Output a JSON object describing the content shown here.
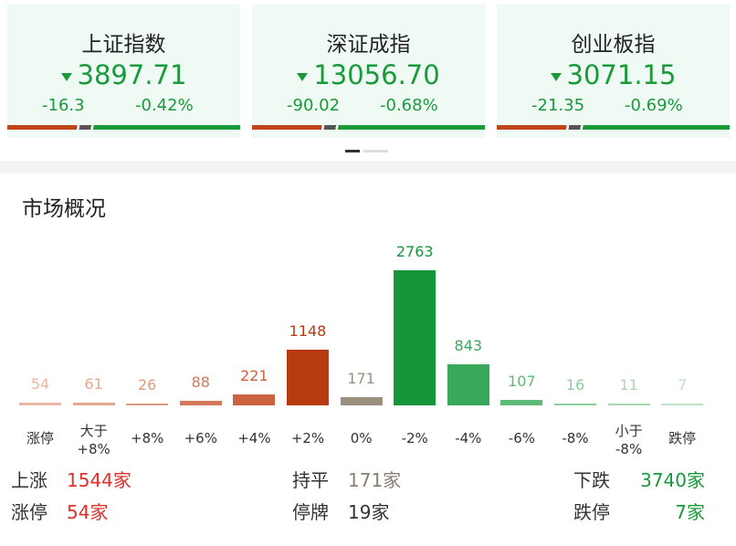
{
  "indices": [
    {
      "name": "上证指数",
      "value": "3897.71",
      "change": "-16.3",
      "pct": "-0.42%"
    },
    {
      "name": "深证成指",
      "value": "13056.70",
      "change": "-90.02",
      "pct": "-0.68%"
    },
    {
      "name": "创业板指",
      "value": "3071.15",
      "change": "-21.35",
      "pct": "-0.69%"
    }
  ],
  "section_title": "市场概况",
  "chart_data": {
    "type": "bar",
    "categories": [
      "涨停",
      "大于\n+8%",
      "+8%",
      "+6%",
      "+4%",
      "+2%",
      "0%",
      "-2%",
      "-4%",
      "-6%",
      "-8%",
      "小于\n-8%",
      "跌停"
    ],
    "values": [
      54,
      61,
      26,
      88,
      221,
      1148,
      171,
      2763,
      843,
      107,
      16,
      11,
      7
    ],
    "colors": [
      "#e9b7a4",
      "#e3a890",
      "#dd9a80",
      "#d4795a",
      "#cb6240",
      "#b83a10",
      "#9c8f80",
      "#15963a",
      "#3aa85b",
      "#5fb977",
      "#8fcd9e",
      "#a6d8b2",
      "#bfe3c7"
    ]
  },
  "summary": [
    {
      "label": "上涨",
      "value": "1544家"
    },
    {
      "label": "持平",
      "value": "171家"
    },
    {
      "label": "下跌",
      "value": "3740家"
    },
    {
      "label": "涨停",
      "value": "54家"
    },
    {
      "label": "停牌",
      "value": "19家"
    },
    {
      "label": "跌停",
      "value": "7家"
    }
  ]
}
